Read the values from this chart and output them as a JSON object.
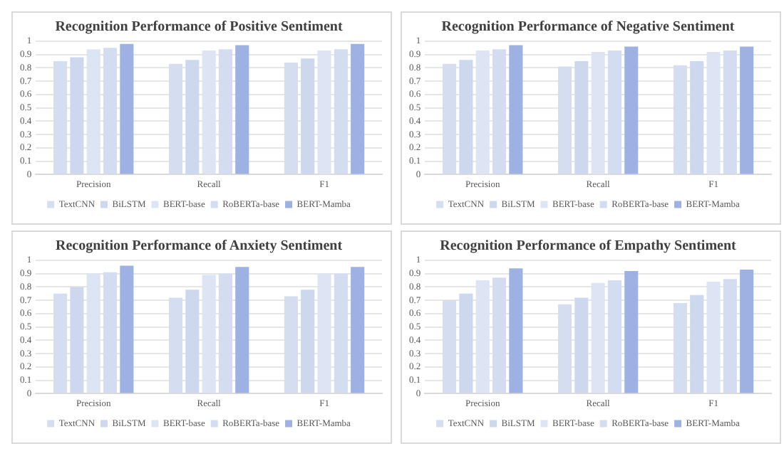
{
  "chart_data": [
    {
      "type": "bar",
      "title": "Recognition Performance of Positive Sentiment",
      "categories": [
        "Precision",
        "Recall",
        "F1"
      ],
      "series": [
        {
          "name": "TextCNN",
          "color": "#d5ddf0",
          "values": [
            0.85,
            0.83,
            0.84
          ]
        },
        {
          "name": "BiLSTM",
          "color": "#cdd8ef",
          "values": [
            0.88,
            0.86,
            0.87
          ]
        },
        {
          "name": "BERT-base",
          "color": "#dde4f4",
          "values": [
            0.94,
            0.93,
            0.93
          ]
        },
        {
          "name": "RoBERTa-base",
          "color": "#d3dcf1",
          "values": [
            0.95,
            0.94,
            0.94
          ]
        },
        {
          "name": "BERT-Mamba",
          "color": "#9db2e3",
          "values": [
            0.98,
            0.97,
            0.98
          ]
        }
      ],
      "ylim": [
        0,
        1
      ],
      "yticks": [
        0,
        0.1,
        0.2,
        0.3,
        0.4,
        0.5,
        0.6,
        0.7,
        0.8,
        0.9,
        1
      ],
      "grid": "y",
      "legend": "bottom"
    },
    {
      "type": "bar",
      "title": "Recognition Performance of Negative Sentiment",
      "categories": [
        "Precision",
        "Recall",
        "F1"
      ],
      "series": [
        {
          "name": "TextCNN",
          "color": "#d5ddf0",
          "values": [
            0.83,
            0.81,
            0.82
          ]
        },
        {
          "name": "BiLSTM",
          "color": "#cdd8ef",
          "values": [
            0.86,
            0.85,
            0.85
          ]
        },
        {
          "name": "BERT-base",
          "color": "#dde4f4",
          "values": [
            0.93,
            0.92,
            0.92
          ]
        },
        {
          "name": "RoBERTa-base",
          "color": "#d3dcf1",
          "values": [
            0.94,
            0.93,
            0.93
          ]
        },
        {
          "name": "BERT-Mamba",
          "color": "#9db2e3",
          "values": [
            0.97,
            0.96,
            0.96
          ]
        }
      ],
      "ylim": [
        0,
        1
      ],
      "yticks": [
        0,
        0.1,
        0.2,
        0.3,
        0.4,
        0.5,
        0.6,
        0.7,
        0.8,
        0.9,
        1
      ],
      "grid": "y",
      "legend": "bottom"
    },
    {
      "type": "bar",
      "title": "Recognition Performance of Anxiety Sentiment",
      "categories": [
        "Precision",
        "Recall",
        "F1"
      ],
      "series": [
        {
          "name": "TextCNN",
          "color": "#d5ddf0",
          "values": [
            0.75,
            0.72,
            0.73
          ]
        },
        {
          "name": "BiLSTM",
          "color": "#cdd8ef",
          "values": [
            0.8,
            0.78,
            0.78
          ]
        },
        {
          "name": "BERT-base",
          "color": "#dde4f4",
          "values": [
            0.9,
            0.89,
            0.9
          ]
        },
        {
          "name": "RoBERTa-base",
          "color": "#d3dcf1",
          "values": [
            0.91,
            0.9,
            0.9
          ]
        },
        {
          "name": "BERT-Mamba",
          "color": "#9db2e3",
          "values": [
            0.96,
            0.95,
            0.95
          ]
        }
      ],
      "ylim": [
        0,
        1
      ],
      "yticks": [
        0,
        0.1,
        0.2,
        0.3,
        0.4,
        0.5,
        0.6,
        0.7,
        0.8,
        0.9,
        1
      ],
      "grid": "y",
      "legend": "bottom"
    },
    {
      "type": "bar",
      "title": "Recognition Performance of Empathy Sentiment",
      "categories": [
        "Precision",
        "Recall",
        "F1"
      ],
      "series": [
        {
          "name": "TextCNN",
          "color": "#d5ddf0",
          "values": [
            0.7,
            0.67,
            0.68
          ]
        },
        {
          "name": "BiLSTM",
          "color": "#cdd8ef",
          "values": [
            0.75,
            0.72,
            0.74
          ]
        },
        {
          "name": "BERT-base",
          "color": "#dde4f4",
          "values": [
            0.85,
            0.83,
            0.84
          ]
        },
        {
          "name": "RoBERTa-base",
          "color": "#d3dcf1",
          "values": [
            0.87,
            0.85,
            0.86
          ]
        },
        {
          "name": "BERT-Mamba",
          "color": "#9db2e3",
          "values": [
            0.94,
            0.92,
            0.93
          ]
        }
      ],
      "ylim": [
        0,
        1
      ],
      "yticks": [
        0,
        0.1,
        0.2,
        0.3,
        0.4,
        0.5,
        0.6,
        0.7,
        0.8,
        0.9,
        1
      ],
      "grid": "y",
      "legend": "bottom"
    }
  ]
}
